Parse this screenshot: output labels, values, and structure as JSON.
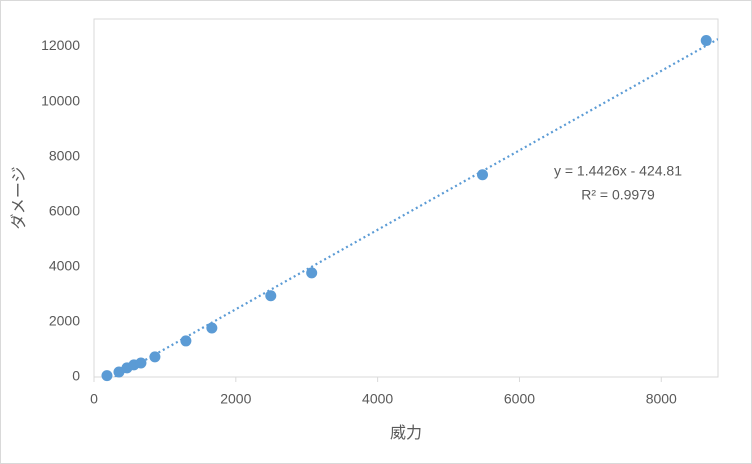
{
  "chart_data": {
    "type": "scatter",
    "x_label": "威力",
    "y_label": "ダメージ",
    "series": [
      {
        "color": "#5b9bd5",
        "x": [
          183,
          352,
          465,
          563,
          662,
          859,
          1296,
          1662,
          2493,
          3070,
          5479,
          8634
        ],
        "values": [
          50,
          180,
          330,
          440,
          510,
          730,
          1310,
          1780,
          2950,
          3780,
          7345,
          12220
        ]
      }
    ],
    "trendline": {
      "slope": 1.4426,
      "intercept": -424.81,
      "style": "dotted",
      "equation": "y = 1.4426x - 424.81",
      "r_squared_label": "R² = 0.9979"
    },
    "xlim": [
      0,
      8800
    ],
    "xticks": [
      0,
      2000,
      4000,
      6000,
      8000
    ],
    "ylim": [
      0,
      13000
    ],
    "yticks": [
      0,
      2000,
      4000,
      6000,
      8000,
      10000,
      12000
    ],
    "grid": false
  }
}
